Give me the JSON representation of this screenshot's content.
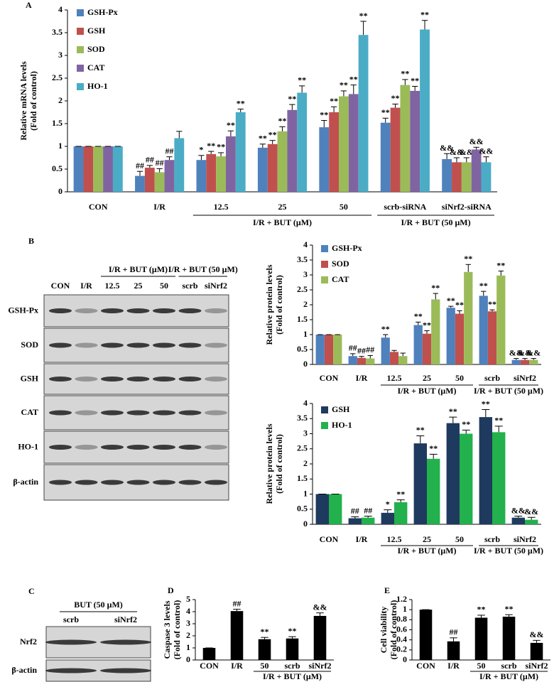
{
  "chart_data": [
    {
      "type": "bar",
      "panel": "A",
      "ylabel": [
        "Relative mRNA levels",
        "(Fold of control)"
      ],
      "categories": [
        "CON",
        "I/R",
        "12.5",
        "25",
        "50",
        "scrb-siRNA",
        "siNrf2-siRNA"
      ],
      "group_labels": [
        "I/R + BUT (μM)",
        "I/R + BUT (50 μM)"
      ],
      "ylim": [
        0,
        4
      ],
      "yticks": [
        0,
        0.5,
        1,
        1.5,
        2,
        2.5,
        3,
        3.5,
        4
      ],
      "legend": "top-left",
      "series": [
        {
          "name": "GSH-Px",
          "color": "#4f81bd",
          "values": [
            1,
            0.35,
            0.7,
            0.97,
            1.42,
            1.52,
            0.72
          ],
          "errors": [
            0,
            0.1,
            0.1,
            0.08,
            0.15,
            0.1,
            0.12
          ],
          "annotations": [
            null,
            "##",
            "*",
            "**",
            "**",
            "**",
            "&&"
          ]
        },
        {
          "name": "GSH",
          "color": "#c0504d",
          "values": [
            1,
            0.53,
            0.83,
            1.05,
            1.75,
            1.85,
            0.65
          ],
          "errors": [
            0,
            0.05,
            0.06,
            0.08,
            0.12,
            0.08,
            0.1
          ],
          "annotations": [
            null,
            "##",
            "**",
            "**",
            "**",
            "**",
            "&&"
          ]
        },
        {
          "name": "SOD",
          "color": "#9bbb59",
          "values": [
            1,
            0.43,
            0.78,
            1.33,
            2.1,
            2.35,
            0.65
          ],
          "errors": [
            0,
            0.08,
            0.08,
            0.1,
            0.12,
            0.12,
            0.1
          ],
          "annotations": [
            null,
            "##",
            "**",
            "**",
            "**",
            "**",
            "&&"
          ]
        },
        {
          "name": "CAT",
          "color": "#8064a2",
          "values": [
            1,
            0.7,
            1.22,
            1.8,
            2.15,
            2.22,
            0.93
          ],
          "errors": [
            0,
            0.07,
            0.12,
            0.12,
            0.2,
            0.1,
            0.05
          ],
          "annotations": [
            null,
            "##",
            "**",
            "**",
            "**",
            "**",
            "&&"
          ]
        },
        {
          "name": "HO-1",
          "color": "#4bacc6",
          "values": [
            1,
            1.18,
            1.75,
            2.18,
            3.45,
            3.57,
            0.65
          ],
          "errors": [
            0,
            0.15,
            0.07,
            0.15,
            0.3,
            0.2,
            0.12
          ],
          "annotations": [
            null,
            null,
            "**",
            "**",
            "**",
            "**",
            "&&"
          ]
        }
      ]
    },
    {
      "type": "bar",
      "ylabel": [
        "Relative protein levels",
        "(Fold of control)"
      ],
      "categories": [
        "CON",
        "I/R",
        "12.5",
        "25",
        "50",
        "scrb",
        "siNrf2"
      ],
      "group_labels": [
        "I/R + BUT (μM)",
        "I/R + BUT (50 μM)"
      ],
      "ylim": [
        0,
        4
      ],
      "yticks": [
        0,
        0.5,
        1,
        1.5,
        2,
        2.5,
        3,
        3.5,
        4
      ],
      "legend": "top-left",
      "series": [
        {
          "name": "GSH-Px",
          "color": "#4f81bd",
          "values": [
            1,
            0.28,
            0.9,
            1.32,
            1.9,
            2.3,
            0.15
          ],
          "errors": [
            0,
            0.08,
            0.1,
            0.1,
            0.05,
            0.15,
            0.05
          ],
          "annotations": [
            null,
            "##",
            "**",
            "**",
            "**",
            "**",
            "&&"
          ]
        },
        {
          "name": "SOD",
          "color": "#c0504d",
          "values": [
            1,
            0.22,
            0.42,
            1.03,
            1.7,
            1.78,
            0.15
          ],
          "errors": [
            0,
            0.05,
            0.05,
            0.1,
            0.1,
            0.05,
            0.05
          ],
          "annotations": [
            null,
            "##",
            null,
            "**",
            "**",
            "**",
            "&&"
          ]
        },
        {
          "name": "CAT",
          "color": "#9bbb59",
          "values": [
            1,
            0.2,
            0.28,
            2.18,
            3.1,
            2.98,
            0.15
          ],
          "errors": [
            0,
            0.1,
            0.1,
            0.2,
            0.25,
            0.15,
            0.05
          ],
          "annotations": [
            null,
            "##",
            null,
            "**",
            "**",
            "**",
            "&&"
          ]
        }
      ]
    },
    {
      "type": "bar",
      "ylabel": [
        "Relative protein levels",
        "(Fold of control)"
      ],
      "categories": [
        "CON",
        "I/R",
        "12.5",
        "25",
        "50",
        "scrb",
        "siNrf2"
      ],
      "group_labels": [
        "I/R + BUT (μM)",
        "I/R + BUT (50 μM)"
      ],
      "ylim": [
        0,
        4
      ],
      "yticks": [
        0,
        0.5,
        1,
        1.5,
        2,
        2.5,
        3,
        3.5,
        4
      ],
      "legend": "top-left",
      "series": [
        {
          "name": "GSH",
          "color": "#1f3a5f",
          "values": [
            1,
            0.2,
            0.38,
            2.68,
            3.35,
            3.55,
            0.22
          ],
          "errors": [
            0,
            0.05,
            0.1,
            0.25,
            0.2,
            0.25,
            0.05
          ],
          "annotations": [
            null,
            "##",
            "*",
            "**",
            "**",
            "**",
            "&&"
          ]
        },
        {
          "name": "HO-1",
          "color": "#22b14c",
          "values": [
            1,
            0.22,
            0.73,
            2.17,
            3,
            3.05,
            0.15
          ],
          "errors": [
            0,
            0.05,
            0.08,
            0.15,
            0.12,
            0.2,
            0.08
          ],
          "annotations": [
            null,
            "##",
            "**",
            "**",
            "**",
            "**",
            "&&"
          ]
        }
      ]
    },
    {
      "type": "bar",
      "panel": "D",
      "ylabel": [
        "Caspase 3 levels",
        "(Fold of control)"
      ],
      "categories": [
        "CON",
        "I/R",
        "50",
        "scrb",
        "siNrf2"
      ],
      "group_labels": [
        "I/R + BUT (μM)"
      ],
      "ylim": [
        0,
        5
      ],
      "yticks": [
        0,
        1,
        2,
        3,
        4,
        5
      ],
      "color": "#000000",
      "values": [
        1,
        4.05,
        1.72,
        1.78,
        3.65
      ],
      "errors": [
        0,
        0.15,
        0.15,
        0.15,
        0.25
      ],
      "annotations": [
        null,
        "##",
        "**",
        "**",
        "&&"
      ]
    },
    {
      "type": "bar",
      "panel": "E",
      "ylabel": [
        "Cell viability",
        "(Fold of control)"
      ],
      "categories": [
        "CON",
        "I/R",
        "50",
        "scrb",
        "siNrf2"
      ],
      "group_labels": [
        "I/R + BUT (μM)"
      ],
      "ylim": [
        0,
        1.2
      ],
      "yticks": [
        0,
        0.2,
        0.4,
        0.6,
        0.8,
        1,
        1.2
      ],
      "color": "#000000",
      "values": [
        1,
        0.37,
        0.84,
        0.86,
        0.34
      ],
      "errors": [
        0,
        0.07,
        0.05,
        0.04,
        0.05
      ],
      "annotations": [
        null,
        "##",
        "**",
        "**",
        "&&"
      ]
    }
  ],
  "blots": [
    {
      "panel": "B",
      "header_groups": [
        "I/R + BUT (μM)",
        "I/R + BUT (50 μM)"
      ],
      "lanes": [
        "CON",
        "I/R",
        "12.5",
        "25",
        "50",
        "scrb",
        "siNrf2"
      ],
      "rows": [
        "GSH-Px",
        "SOD",
        "GSH",
        "CAT",
        "HO-1",
        "β-actin"
      ]
    },
    {
      "panel": "C",
      "header_groups": [
        "BUT (50 μM)"
      ],
      "lanes": [
        "scrb",
        "siNrf2"
      ],
      "rows": [
        "Nrf2",
        "β-actin"
      ]
    }
  ]
}
